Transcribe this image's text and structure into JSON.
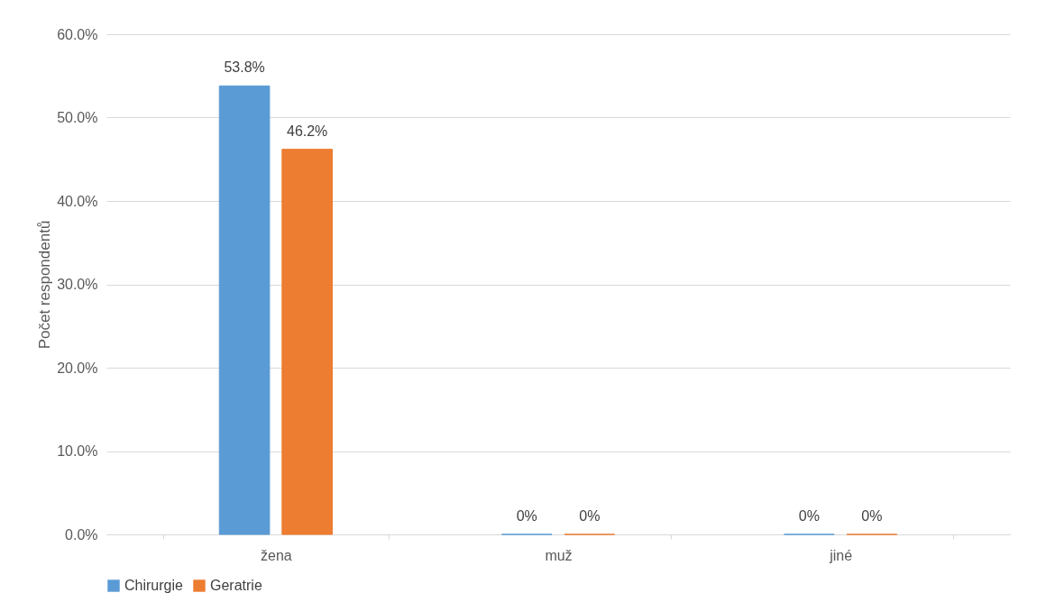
{
  "chart_data": {
    "type": "bar",
    "ylabel": "Počet respondentů",
    "categories": [
      "žena",
      "muž",
      "jiné"
    ],
    "series": [
      {
        "name": "Chirurgie",
        "color": "#5b9bd5",
        "values": [
          53.8,
          0,
          0
        ],
        "value_labels": [
          "53.8%",
          "0%",
          "0%"
        ]
      },
      {
        "name": "Geratrie",
        "color": "#ed7d31",
        "values": [
          46.2,
          0,
          0
        ],
        "value_labels": [
          "46.2%",
          "0%",
          "0%"
        ]
      }
    ],
    "ylim": [
      0,
      60
    ],
    "yticks": [
      {
        "value": 0,
        "label": "0.0%"
      },
      {
        "value": 10,
        "label": "10.0%"
      },
      {
        "value": 20,
        "label": "20.0%"
      },
      {
        "value": 30,
        "label": "30.0%"
      },
      {
        "value": 40,
        "label": "40.0%"
      },
      {
        "value": 50,
        "label": "50.0%"
      },
      {
        "value": 60,
        "label": "60.0%"
      }
    ],
    "grid": "y",
    "legend": "bottom"
  }
}
